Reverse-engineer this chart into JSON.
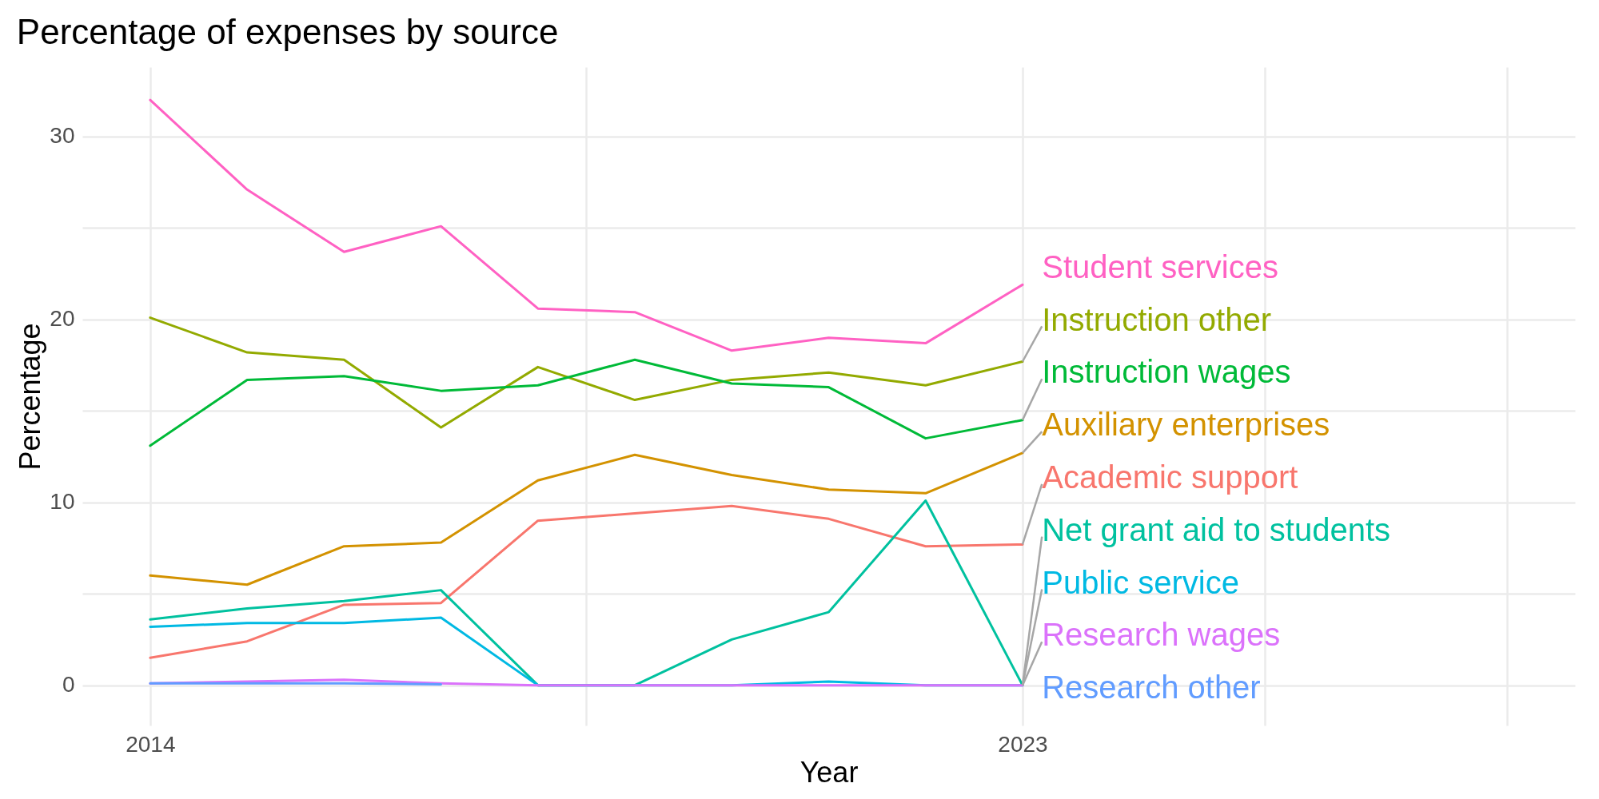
{
  "chart_data": {
    "type": "line",
    "title": "Percentage of expenses by source",
    "xlabel": "Year",
    "ylabel": "Percentage",
    "x": [
      2014,
      2015,
      2016,
      2017,
      2018,
      2019,
      2020,
      2021,
      2022,
      2023
    ],
    "series": [
      {
        "name": "Student services",
        "color": "#ff61c3",
        "values": [
          32.0,
          27.1,
          23.7,
          25.1,
          20.6,
          20.4,
          18.3,
          19.0,
          18.7,
          21.9
        ]
      },
      {
        "name": "Instruction other",
        "color": "#93aa00",
        "values": [
          20.1,
          18.2,
          17.8,
          14.1,
          17.4,
          15.6,
          16.7,
          17.1,
          16.4,
          17.7
        ]
      },
      {
        "name": "Instruction wages",
        "color": "#00ba38",
        "values": [
          13.1,
          16.7,
          16.9,
          16.1,
          16.4,
          17.8,
          16.5,
          16.3,
          13.5,
          14.5
        ]
      },
      {
        "name": "Auxiliary enterprises",
        "color": "#d39200",
        "values": [
          6.0,
          5.5,
          7.6,
          7.8,
          11.2,
          12.6,
          11.5,
          10.7,
          10.5,
          12.7
        ]
      },
      {
        "name": "Academic support",
        "color": "#f8766d",
        "values": [
          1.5,
          2.4,
          4.4,
          4.5,
          9.0,
          9.4,
          9.8,
          9.1,
          7.6,
          7.7
        ]
      },
      {
        "name": "Net grant aid to students",
        "color": "#00c19f",
        "values": [
          3.6,
          4.2,
          4.6,
          5.2,
          0,
          0,
          2.5,
          4.0,
          10.1,
          0
        ]
      },
      {
        "name": "Public service",
        "color": "#00b9e3",
        "values": [
          3.2,
          3.4,
          3.4,
          3.7,
          0,
          0,
          0,
          0.2,
          0,
          0
        ]
      },
      {
        "name": "Research wages",
        "color": "#db72fb",
        "values": [
          0.1,
          0.2,
          0.3,
          0.1,
          0,
          0,
          0,
          0,
          0,
          0
        ]
      },
      {
        "name": "Research other",
        "color": "#619cff",
        "values": [
          0.1,
          0.1,
          0.1,
          0.05,
          null,
          null,
          null,
          null,
          null,
          null
        ]
      }
    ],
    "xlim": [
      2013.3,
      2028.7
    ],
    "xticks": [
      2014,
      {
        "value": 2018.5,
        "label": null
      },
      2023,
      {
        "value": 2025.5,
        "label": null
      },
      {
        "value": 2028,
        "label": null
      }
    ],
    "ylim": [
      -2.2,
      33.8
    ],
    "yticks": [
      0,
      {
        "value": 5,
        "label": null
      },
      10,
      {
        "value": 15,
        "label": null
      },
      20,
      {
        "value": 25,
        "label": null
      },
      30
    ],
    "grid": true,
    "legend": false
  }
}
